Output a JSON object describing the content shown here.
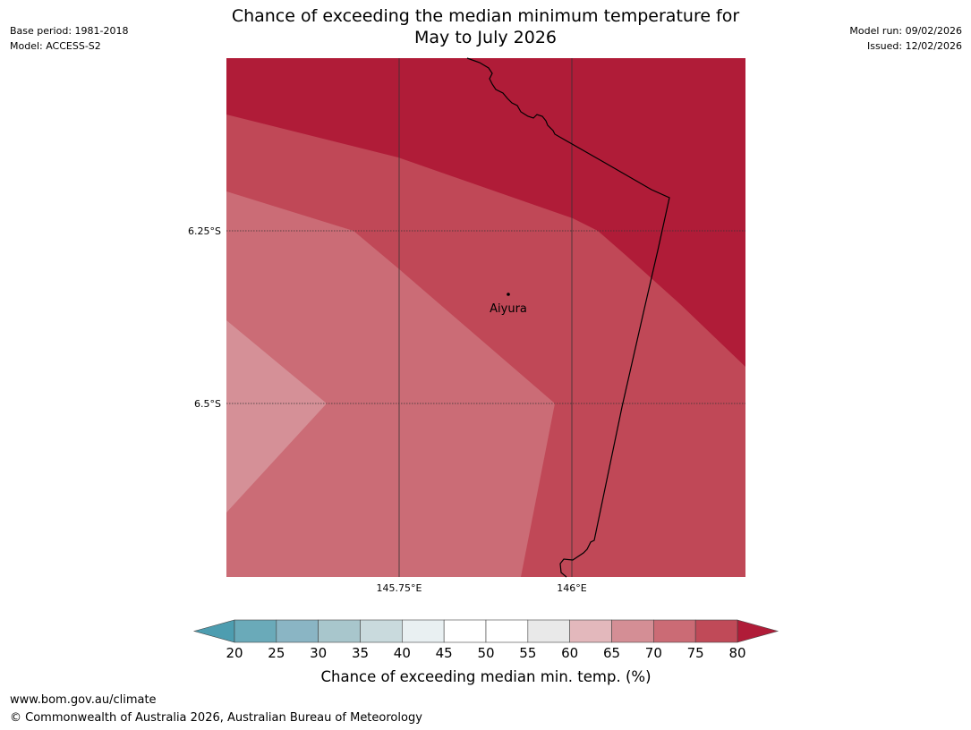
{
  "header": {
    "base_period": "Base period: 1981-2018",
    "model": "Model: ACCESS-S2",
    "model_run": "Model run: 09/02/2026",
    "issued": "Issued: 12/02/2026",
    "title_line1": "Chance of exceeding the median minimum temperature for",
    "title_line2": "May to July 2026"
  },
  "map": {
    "lat_labels": [
      "6.25°S",
      "6.5°S"
    ],
    "lon_labels": [
      "145.75°E",
      "146°E"
    ],
    "place": {
      "name": "Aiyura"
    },
    "region_classes": [
      {
        "band": "80+",
        "color": "#b01c38"
      },
      {
        "band": "75-80",
        "color": "#c04857"
      },
      {
        "band": "70-75",
        "color": "#cb6c76"
      },
      {
        "band": "65-70",
        "color": "#d59097"
      }
    ]
  },
  "colorbar": {
    "ticks": [
      "20",
      "25",
      "30",
      "35",
      "40",
      "45",
      "50",
      "55",
      "60",
      "65",
      "70",
      "75",
      "80"
    ],
    "colors": [
      "#6aaab9",
      "#8ab5c4",
      "#a8c6cc",
      "#c9dadd",
      "#e9f0f2",
      "#ffffff",
      "#ffffff",
      "#e9e9e9",
      "#e3b8bc",
      "#d48e95",
      "#cb6b75",
      "#c04a58"
    ],
    "low_extend_color": "#4d9db0",
    "high_extend_color": "#b01c38",
    "label": "Chance of exceeding median min. temp. (%)"
  },
  "footer": {
    "url": "www.bom.gov.au/climate",
    "copyright": "© Commonwealth of Australia 2026, Australian Bureau of Meteorology"
  }
}
